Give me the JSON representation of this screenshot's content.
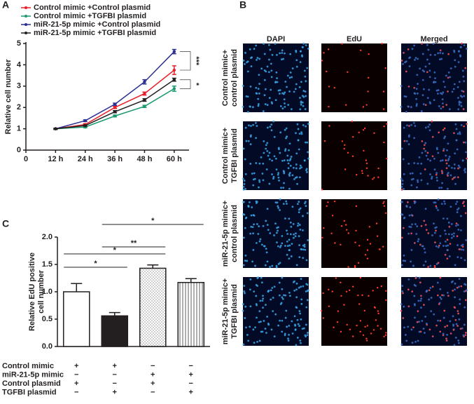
{
  "chart_data": [
    {
      "panel": "A",
      "type": "line",
      "ylabel": "Relative cell number",
      "x": [
        12,
        24,
        36,
        48,
        60
      ],
      "xlim": [
        0,
        66
      ],
      "xticks": [
        0,
        {
          "value": 12,
          "label": "12 h"
        },
        {
          "value": 24,
          "label": "24 h"
        },
        {
          "value": 36,
          "label": "36 h"
        },
        {
          "value": 48,
          "label": "48 h"
        },
        {
          "value": 60,
          "label": "60 h"
        }
      ],
      "ylim": [
        0,
        5
      ],
      "yticks": [
        0,
        1,
        2,
        3,
        4,
        5
      ],
      "series": [
        {
          "name": "Control mimic +Control plasmid",
          "color": "#e8202a",
          "values": [
            1,
            1.2,
            2.0,
            2.65,
            3.75
          ],
          "errors": [
            0.03,
            0.04,
            0.05,
            0.07,
            0.2
          ]
        },
        {
          "name": "Control mimic +TGFBI plasmid",
          "color": "#1a9a6c",
          "values": [
            1,
            1.08,
            1.6,
            2.05,
            2.88
          ],
          "errors": [
            0.03,
            0.03,
            0.04,
            0.05,
            0.12
          ]
        },
        {
          "name": "miR-21-5p mimic +Control plasmid",
          "color": "#2b2f8f",
          "values": [
            1,
            1.38,
            2.15,
            3.2,
            4.62
          ],
          "errors": [
            0.03,
            0.04,
            0.05,
            0.1,
            0.1
          ]
        },
        {
          "name": "miR-21-5p mimic +TGFBI plasmid",
          "color": "#231f20",
          "values": [
            1,
            1.15,
            1.8,
            2.35,
            3.3
          ],
          "errors": [
            0.03,
            0.03,
            0.05,
            0.06,
            0.07
          ]
        }
      ],
      "annotations": [
        {
          "text": "***",
          "series": [
            2,
            0
          ]
        },
        {
          "text": "*",
          "series": [
            3,
            1
          ]
        }
      ]
    },
    {
      "panel": "C",
      "type": "bar",
      "ylabel": [
        "Relative EdU positive",
        "cell number"
      ],
      "categories": [
        null,
        null,
        null,
        null
      ],
      "values": [
        1.0,
        0.56,
        1.43,
        1.17
      ],
      "errors": [
        0.15,
        0.06,
        0.06,
        0.07
      ],
      "bar_styles": [
        "white",
        "#231f20",
        "dots",
        "stripes"
      ],
      "ylim": [
        0,
        2
      ],
      "yticks": [
        {
          "value": 0,
          "label": "0.0"
        },
        0.5,
        {
          "value": 1,
          "label": "1.0"
        },
        1.5,
        {
          "value": 2,
          "label": "2.0"
        }
      ],
      "significance": [
        {
          "bars": [
            0,
            1
          ],
          "label": "*"
        },
        {
          "bars": [
            0,
            2
          ],
          "label": "*"
        },
        {
          "bars": [
            1,
            2
          ],
          "label": "**"
        },
        {
          "bars": [
            1,
            3
          ],
          "label": "*"
        }
      ],
      "conditions": [
        {
          "label": "Control mimic",
          "marks": [
            "+",
            "+",
            "−",
            "−"
          ]
        },
        {
          "label": "miR-21-5p mimic",
          "marks": [
            "−",
            "−",
            "+",
            "+"
          ]
        },
        {
          "label": "Control plasmid",
          "marks": [
            "+",
            "−",
            "+",
            "−"
          ]
        },
        {
          "label": "TGFBI plasmid",
          "marks": [
            "−",
            "+",
            "−",
            "+"
          ]
        }
      ]
    }
  ],
  "image_panel": {
    "panel": "B",
    "columns": [
      "DAPI",
      "EdU",
      "Merged"
    ],
    "rows": [
      [
        "Control mimic+",
        "control plasmid"
      ],
      [
        "Control mimic+",
        "TGFBI plasmid"
      ],
      [
        "miR-21-5p mimic+",
        "control plasmid"
      ],
      [
        "miR-21-5p mimic+",
        "TGFBI plasmid"
      ]
    ]
  }
}
